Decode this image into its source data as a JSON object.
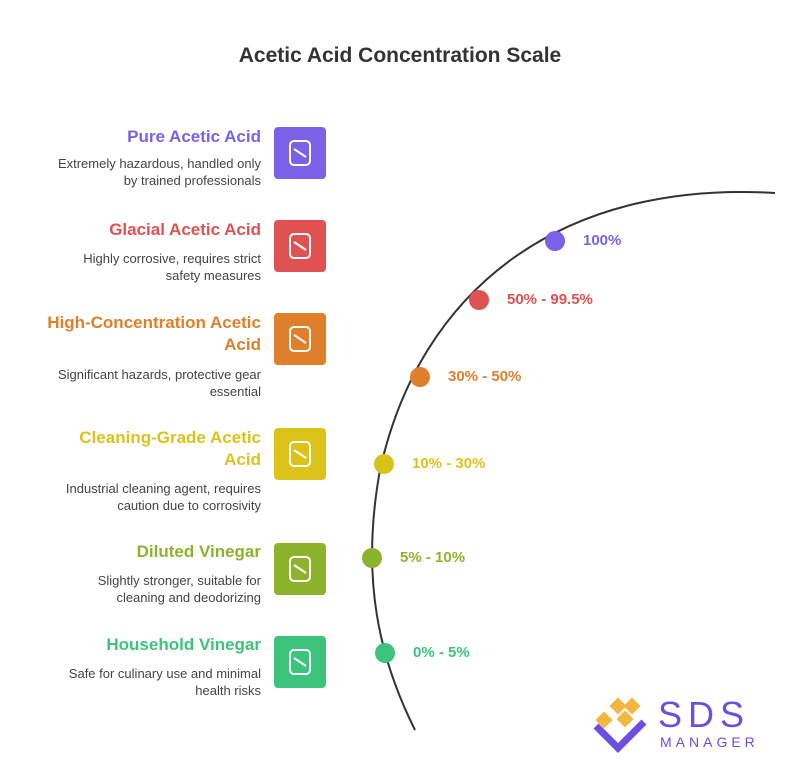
{
  "title": "Acetic Acid Concentration Scale",
  "items": [
    {
      "name": "Pure Acetic Acid",
      "description": [
        "Extremely hazardous, handled only",
        "by trained professionals"
      ],
      "range": "100%",
      "color": "#7b61e8"
    },
    {
      "name": "Glacial Acetic Acid",
      "description": [
        "Highly corrosive, requires strict",
        "safety measures"
      ],
      "range": "50% - 99.5%",
      "color": "#e05252"
    },
    {
      "name": "High-Concentration Acetic Acid",
      "description": [
        "Significant hazards, protective gear",
        "essential"
      ],
      "range": "30% - 50%",
      "color": "#e07f2a"
    },
    {
      "name": "Cleaning-Grade Acetic Acid",
      "description": [
        "Industrial cleaning agent, requires",
        "caution due to corrosivity"
      ],
      "range": "10% - 30%",
      "color": "#dcc31a"
    },
    {
      "name": "Diluted Vinegar",
      "description": [
        "Slightly stronger, suitable for",
        "cleaning and deodorizing"
      ],
      "range": "5% - 10%",
      "color": "#8db32c"
    },
    {
      "name": "Household Vinegar",
      "description": [
        "Safe for culinary use and minimal",
        "health risks"
      ],
      "range": "0% - 5%",
      "color": "#3cc47c"
    }
  ],
  "logo": {
    "name": "SDS",
    "subtitle": "MANAGER"
  }
}
